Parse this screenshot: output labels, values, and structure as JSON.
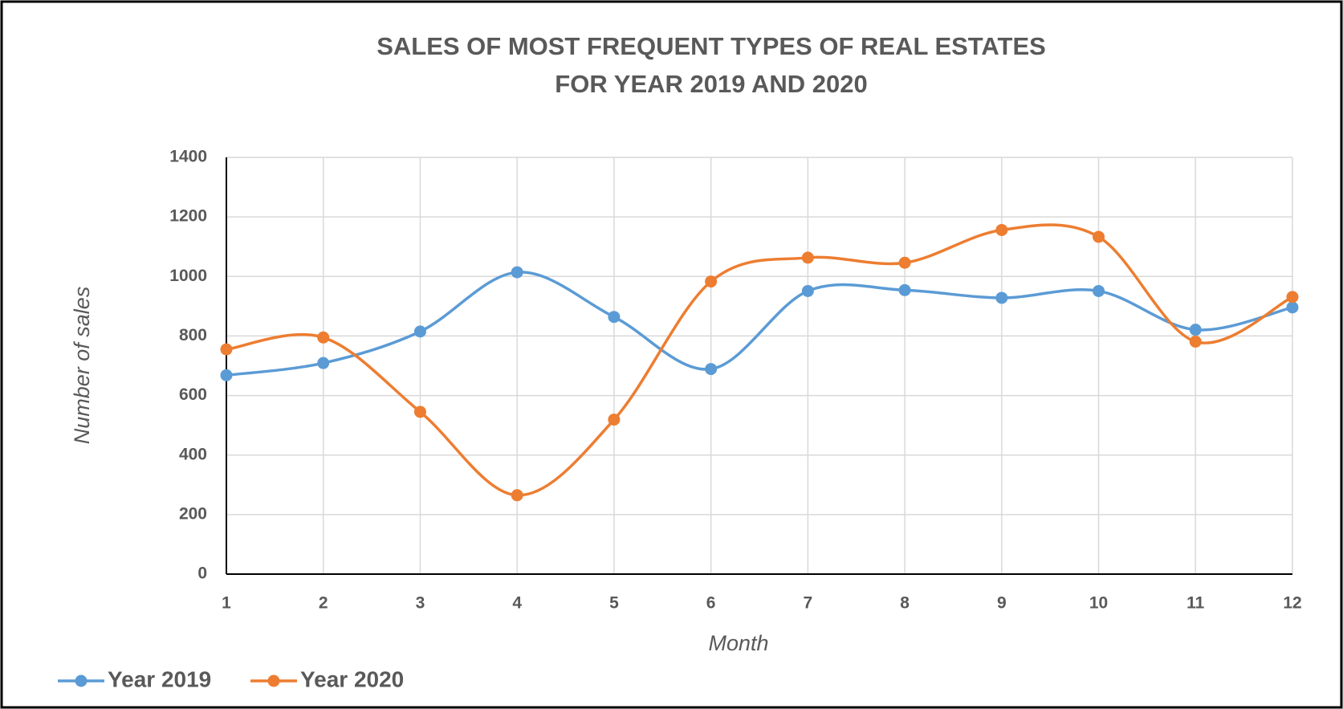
{
  "chart_data": {
    "type": "line",
    "title": [
      "SALES OF MOST FREQUENT TYPES OF REAL ESTATES",
      "FOR YEAR 2019 AND 2020"
    ],
    "x_label": "Month",
    "y_label": "Number of sales",
    "x": [
      1,
      2,
      3,
      4,
      5,
      6,
      7,
      8,
      9,
      10,
      11,
      12
    ],
    "series": [
      {
        "name": "Year 2019",
        "color": "#5b9bd5",
        "values": [
          668,
          709,
          815,
          1014,
          864,
          689,
          951,
          954,
          928,
          951,
          821,
          896
        ]
      },
      {
        "name": "Year 2020",
        "color": "#ed7d31",
        "values": [
          755,
          795,
          545,
          265,
          519,
          983,
          1063,
          1046,
          1156,
          1133,
          781,
          931
        ]
      }
    ],
    "xlim": [
      1,
      12
    ],
    "xticks": [
      1,
      2,
      3,
      4,
      5,
      6,
      7,
      8,
      9,
      10,
      11,
      12
    ],
    "ylim": [
      0,
      1400
    ],
    "yticks": [
      0,
      200,
      400,
      600,
      800,
      1000,
      1200,
      1400
    ],
    "grid": true,
    "smooth": true,
    "legend": "bottom-left"
  }
}
